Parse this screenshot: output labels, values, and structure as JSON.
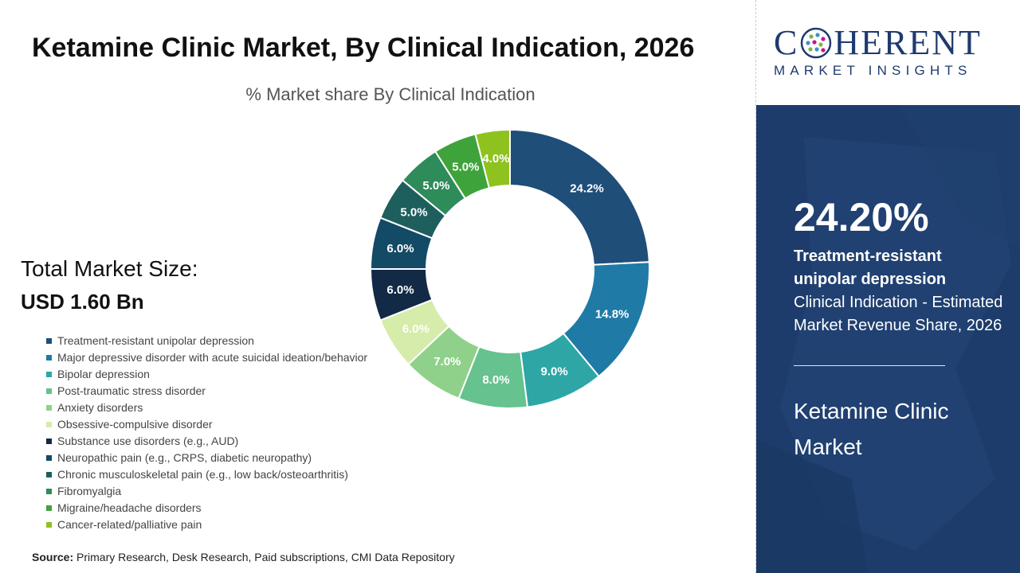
{
  "page": {
    "title": "Ketamine Clinic Market, By Clinical Indication, 2026",
    "total_market_label": "Total Market Size:",
    "total_market_value": "USD 1.60 Bn",
    "source_label": "Source:",
    "source_text": "Primary Research, Desk Research, Paid subscriptions, CMI Data Repository"
  },
  "logo": {
    "left_text": "C",
    "right_text": "HERENT",
    "sub_text": "MARKET INSIGHTS"
  },
  "highlight": {
    "value": "24.20%",
    "name": "Treatment-resistant unipolar depression",
    "description": "Clinical Indication - Estimated Market Revenue Share, 2026",
    "market": "Ketamine Clinic Market"
  },
  "chart_data": {
    "type": "pie",
    "variant": "donut",
    "title": "% Market share By Clinical Indication",
    "legend_placement": "bottom-left",
    "unit": "%",
    "categories": [
      "Treatment-resistant unipolar depression",
      "Major depressive disorder with acute suicidal ideation/behavior",
      "Bipolar depression",
      "Post-traumatic stress disorder",
      "Anxiety disorders",
      "Obsessive-compulsive disorder",
      "Substance use disorders (e.g., AUD)",
      "Neuropathic pain (e.g., CRPS, diabetic neuropathy)",
      "Chronic musculoskeletal pain (e.g., low back/osteoarthritis)",
      "Fibromyalgia",
      "Migraine/headache disorders",
      "Cancer-related/palliative pain"
    ],
    "values": [
      24.2,
      14.8,
      9.0,
      8.0,
      7.0,
      6.0,
      6.0,
      6.0,
      5.0,
      5.0,
      5.0,
      4.0
    ],
    "labels": [
      "24.2%",
      "14.8%",
      "9.0%",
      "8.0%",
      "7.0%",
      "6.0%",
      "6.0%",
      "6.0%",
      "5.0%",
      "5.0%",
      "5.0%",
      "4.0%"
    ],
    "colors": [
      "#1f4e79",
      "#1f7aa6",
      "#2ea6a6",
      "#66c28e",
      "#8fd18a",
      "#d6ecaa",
      "#122a45",
      "#134a66",
      "#1e5f5e",
      "#2e8b5a",
      "#3fa33b",
      "#8ec21f"
    ],
    "label_colors": [
      "#ffffff",
      "#ffffff",
      "#ffffff",
      "#ffffff",
      "#ffffff",
      "#ffffff",
      "#ffffff",
      "#ffffff",
      "#ffffff",
      "#ffffff",
      "#ffffff",
      "#ffffff"
    ]
  }
}
